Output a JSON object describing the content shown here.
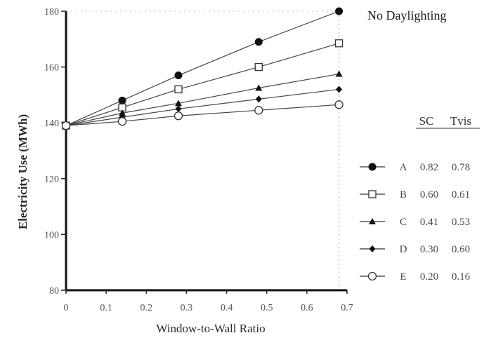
{
  "chart_data": {
    "type": "line",
    "xlabel": "Window-to-Wall Ratio",
    "ylabel": "Electricity Use (MWh)",
    "xlim": [
      0,
      0.7
    ],
    "ylim": [
      80,
      180
    ],
    "x_ticks": [
      "0",
      "0.1",
      "0.2",
      "0.3",
      "0.4",
      "0.5",
      "0.6",
      "0.7"
    ],
    "y_ticks": [
      "80",
      "100",
      "120",
      "140",
      "160",
      "180"
    ],
    "x": [
      0,
      0.14,
      0.28,
      0.48,
      0.68
    ],
    "annotation": "No Daylighting",
    "legend": {
      "headers": [
        "SC",
        "Tvis"
      ],
      "placement": "right"
    },
    "series": [
      {
        "name": "A",
        "sc": "0.82",
        "tvis": "0.78",
        "marker": "filled-circle",
        "values": [
          139,
          148,
          157,
          169,
          180
        ]
      },
      {
        "name": "B",
        "sc": "0.60",
        "tvis": "0.61",
        "marker": "open-square",
        "values": [
          139,
          145.5,
          152,
          160,
          168.5
        ]
      },
      {
        "name": "C",
        "sc": "0.41",
        "tvis": "0.53",
        "marker": "filled-triangle",
        "values": [
          139,
          143.5,
          147,
          152.5,
          157.5
        ]
      },
      {
        "name": "D",
        "sc": "0.30",
        "tvis": "0.60",
        "marker": "filled-diamond",
        "values": [
          139,
          142,
          145,
          148.5,
          152
        ]
      },
      {
        "name": "E",
        "sc": "0.20",
        "tvis": "0.16",
        "marker": "open-circle",
        "values": [
          139,
          140.5,
          142.5,
          144.5,
          146.5
        ]
      }
    ]
  }
}
